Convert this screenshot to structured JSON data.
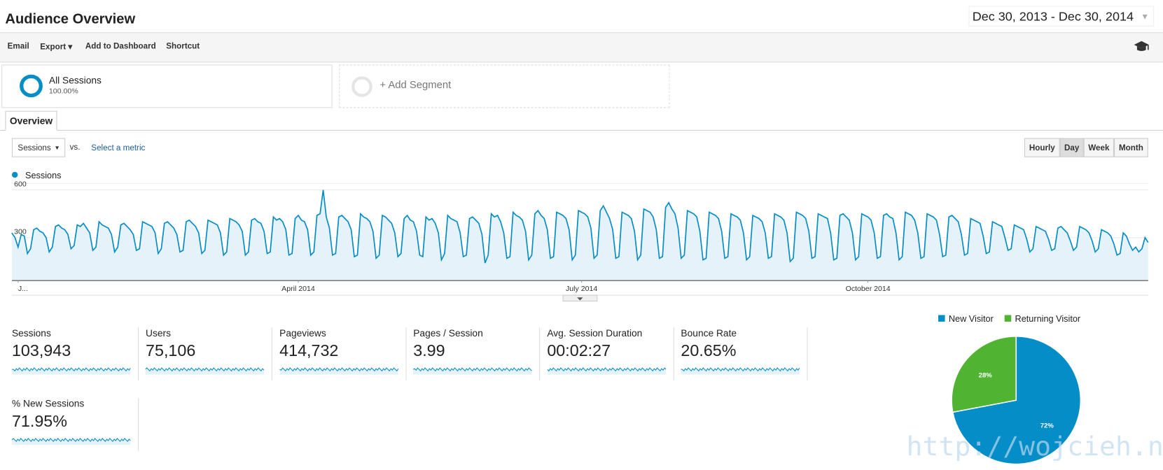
{
  "header": {
    "title": "Audience Overview",
    "date_range": "Dec 30, 2013 - Dec 30, 2014"
  },
  "toolbar": [
    "Email",
    "Export",
    "Add to Dashboard",
    "Shortcut"
  ],
  "segments": [
    {
      "name": "All Sessions",
      "share": "100.00%"
    },
    {
      "name": "+ Add Segment"
    }
  ],
  "tab": "Overview",
  "controls": {
    "metric": "Sessions",
    "vs": "vs.",
    "select": "Select a metric",
    "granularity": [
      "Hourly",
      "Day",
      "Week",
      "Month"
    ],
    "active": "Day"
  },
  "chart_data": [
    {
      "type": "line",
      "series": [
        {
          "name": "Sessions",
          "color": "#058dc7",
          "values": [
            330,
            300,
            240,
            320,
            310,
            200,
            230,
            350,
            360,
            340,
            330,
            300,
            210,
            240,
            370,
            380,
            360,
            350,
            320,
            230,
            250,
            380,
            370,
            390,
            360,
            330,
            220,
            240,
            400,
            380,
            370,
            360,
            320,
            210,
            240,
            380,
            390,
            370,
            350,
            320,
            220,
            230,
            400,
            390,
            380,
            370,
            330,
            200,
            230,
            390,
            400,
            380,
            360,
            320,
            210,
            220,
            400,
            410,
            390,
            370,
            330,
            200,
            220,
            410,
            400,
            390,
            380,
            330,
            190,
            210,
            420,
            410,
            400,
            380,
            340,
            190,
            210,
            410,
            420,
            400,
            390,
            340,
            200,
            210,
            430,
            410,
            420,
            400,
            350,
            190,
            200,
            420,
            440,
            410,
            400,
            350,
            190,
            210,
            440,
            450,
            600,
            430,
            360,
            190,
            200,
            430,
            440,
            420,
            400,
            350,
            180,
            190,
            450,
            430,
            420,
            400,
            340,
            170,
            190,
            440,
            430,
            410,
            390,
            330,
            180,
            200,
            420,
            440,
            410,
            400,
            340,
            190,
            180,
            430,
            410,
            420,
            390,
            330,
            160,
            200,
            440,
            420,
            410,
            400,
            330,
            180,
            190,
            420,
            430,
            410,
            390,
            320,
            140,
            190,
            450,
            430,
            440,
            400,
            330,
            170,
            180,
            460,
            440,
            430,
            410,
            340,
            160,
            190,
            450,
            470,
            440,
            420,
            350,
            170,
            180,
            460,
            450,
            440,
            420,
            350,
            160,
            190,
            470,
            460,
            450,
            430,
            360,
            170,
            190,
            470,
            500,
            460,
            420,
            350,
            170,
            180,
            460,
            450,
            440,
            420,
            340,
            160,
            190,
            480,
            470,
            460,
            430,
            350,
            170,
            180,
            490,
            520,
            480,
            450,
            360,
            170,
            190,
            470,
            460,
            450,
            430,
            340,
            160,
            170,
            460,
            450,
            440,
            420,
            340,
            170,
            180,
            450,
            440,
            430,
            410,
            330,
            160,
            180,
            440,
            430,
            420,
            400,
            330,
            170,
            180,
            450,
            440,
            430,
            410,
            330,
            150,
            170,
            460,
            450,
            440,
            420,
            340,
            170,
            180,
            450,
            440,
            430,
            420,
            330,
            160,
            170,
            440,
            450,
            430,
            410,
            330,
            160,
            180,
            450,
            440,
            430,
            410,
            330,
            170,
            180,
            440,
            450,
            430,
            420,
            330,
            160,
            180,
            460,
            450,
            440,
            410,
            330,
            170,
            180,
            450,
            440,
            430,
            410,
            320,
            180,
            190,
            430,
            440,
            420,
            400,
            320,
            190,
            200,
            420,
            410,
            400,
            390,
            310,
            200,
            210,
            400,
            390,
            380,
            370,
            300,
            220,
            230,
            380,
            370,
            360,
            350,
            290,
            210,
            230,
            370,
            360,
            350,
            340,
            290,
            220,
            230,
            360,
            370,
            350,
            330,
            280,
            220,
            240,
            370,
            360,
            350,
            330,
            280,
            210,
            230,
            350,
            340,
            330,
            310,
            260,
            190,
            200,
            330,
            310,
            260,
            220,
            240,
            210,
            230,
            300,
            270
          ]
        }
      ],
      "xlim": [
        0,
        365
      ],
      "xticks": [
        {
          "value": 2,
          "label": "J..."
        },
        {
          "value": 92,
          "label": "April 2014"
        },
        {
          "value": 183,
          "label": "July 2014"
        },
        {
          "value": 275,
          "label": "October 2014"
        }
      ],
      "ylim": [
        30,
        640
      ],
      "yticks": [
        300,
        600
      ],
      "grid": true
    },
    {
      "type": "pie",
      "categories": [
        "New Visitor",
        "Returning Visitor"
      ],
      "values": [
        72,
        28
      ],
      "value_labels": [
        "72%",
        "28%"
      ],
      "colors": [
        "#058dc7",
        "#50b432"
      ],
      "legend": "top"
    }
  ],
  "metrics": [
    {
      "label": "Sessions",
      "value": "103,943"
    },
    {
      "label": "Users",
      "value": "75,106"
    },
    {
      "label": "Pageviews",
      "value": "414,732"
    },
    {
      "label": "Pages / Session",
      "value": "3.99"
    },
    {
      "label": "Avg. Session Duration",
      "value": "00:02:27"
    },
    {
      "label": "Bounce Rate",
      "value": "20.65%"
    },
    {
      "label": "% New Sessions",
      "value": "71.95%"
    }
  ],
  "watermark": "http://wojcieh.net"
}
